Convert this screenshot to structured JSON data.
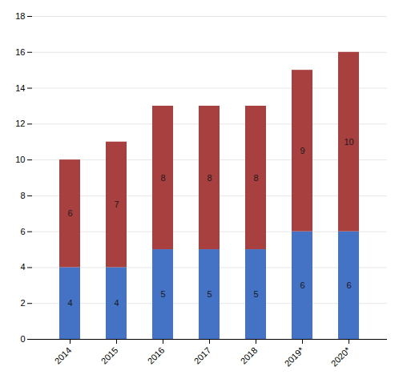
{
  "chart_data": {
    "type": "bar",
    "stacked": true,
    "categories": [
      "2014",
      "2015",
      "2016",
      "2017",
      "2018",
      "2019*",
      "2020*"
    ],
    "series": [
      {
        "color": "#4472C4",
        "values": [
          4,
          4,
          5,
          5,
          5,
          6,
          6
        ]
      },
      {
        "color": "#A94040",
        "values": [
          6,
          7,
          8,
          8,
          8,
          9,
          10
        ]
      }
    ],
    "ylim": [
      0,
      18
    ],
    "yticks": [
      0,
      2,
      4,
      6,
      8,
      10,
      12,
      14,
      16,
      18
    ],
    "grid": true,
    "data_labels": true
  }
}
